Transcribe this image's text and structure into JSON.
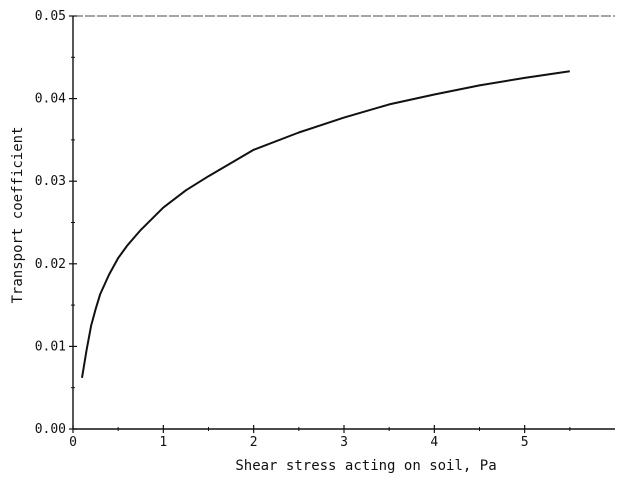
{
  "chart_data": {
    "type": "line",
    "title": "",
    "xlabel": "Shear stress acting on soil, Pa",
    "ylabel": "Transport coefficient",
    "xlim": [
      0,
      6
    ],
    "ylim": [
      0,
      0.05
    ],
    "x_ticks": [
      0,
      1,
      2,
      3,
      4,
      5
    ],
    "x_tick_labels": [
      "0",
      "1",
      "2",
      "3",
      "4",
      "5"
    ],
    "y_ticks": [
      0,
      0.01,
      0.02,
      0.03,
      0.04,
      0.05
    ],
    "y_tick_labels": [
      "0.00",
      "0.01",
      "0.02",
      "0.03",
      "0.04",
      "0.05"
    ],
    "grid": false,
    "series": [
      {
        "x": [
          0.1,
          0.15,
          0.2,
          0.25,
          0.3,
          0.4,
          0.5,
          0.6,
          0.75,
          1.0,
          1.25,
          1.5,
          2.0,
          2.5,
          3.0,
          3.5,
          4.0,
          4.5,
          5.0,
          5.5
        ],
        "y": [
          0.0062,
          0.0095,
          0.0125,
          0.0145,
          0.0163,
          0.0187,
          0.0207,
          0.0222,
          0.0241,
          0.0268,
          0.0289,
          0.0306,
          0.0338,
          0.0359,
          0.0377,
          0.0393,
          0.0405,
          0.0416,
          0.0425,
          0.0433
        ]
      }
    ],
    "colors": {
      "line": "#111111",
      "axis": "#111111",
      "background": "#ffffff"
    }
  }
}
